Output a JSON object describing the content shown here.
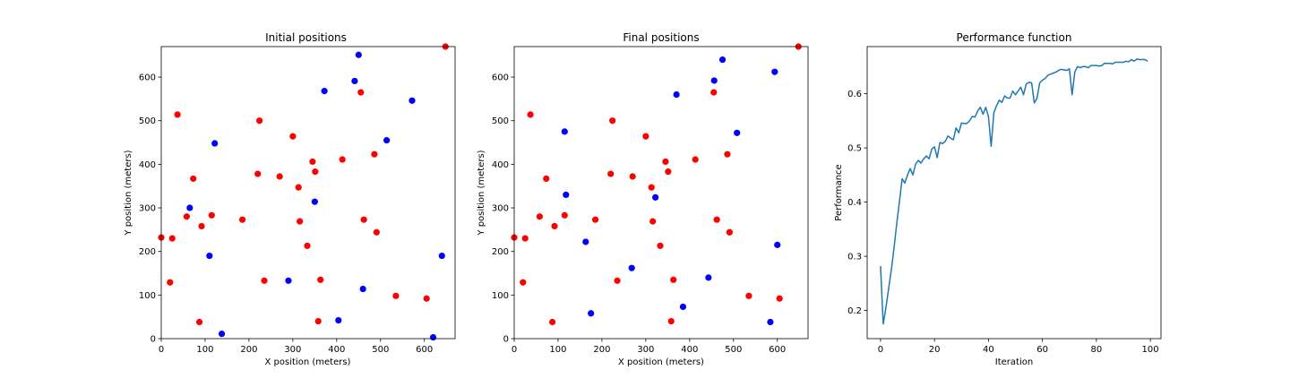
{
  "chart_data": [
    {
      "type": "scatter",
      "title": "Initial positions",
      "xlabel": "X position (meters)",
      "ylabel": "Y position (meters)",
      "xlim": [
        0,
        670
      ],
      "ylim": [
        0,
        670
      ],
      "xticks": [
        0,
        100,
        200,
        300,
        400,
        500,
        600
      ],
      "yticks": [
        0,
        100,
        200,
        300,
        400,
        500,
        600
      ],
      "grid": false,
      "series": [
        {
          "color": "#ff0000",
          "points": [
            [
              0,
              232
            ],
            [
              25,
              230
            ],
            [
              20,
              129
            ],
            [
              37,
              514
            ],
            [
              58,
              280
            ],
            [
              73,
              367
            ],
            [
              92,
              258
            ],
            [
              87,
              38
            ],
            [
              115,
              283
            ],
            [
              185,
              273
            ],
            [
              220,
              378
            ],
            [
              224,
              500
            ],
            [
              235,
              133
            ],
            [
              270,
              372
            ],
            [
              300,
              464
            ],
            [
              313,
              347
            ],
            [
              316,
              269
            ],
            [
              333,
              213
            ],
            [
              345,
              406
            ],
            [
              351,
              383
            ],
            [
              363,
              135
            ],
            [
              358,
              40
            ],
            [
              413,
              411
            ],
            [
              455,
              565
            ],
            [
              462,
              273
            ],
            [
              486,
              423
            ],
            [
              491,
              244
            ],
            [
              535,
              98
            ],
            [
              605,
              92
            ],
            [
              648,
              670
            ]
          ]
        },
        {
          "color": "#0000ff",
          "points": [
            [
              65,
              300
            ],
            [
              110,
              190
            ],
            [
              122,
              448
            ],
            [
              138,
              11
            ],
            [
              290,
              133
            ],
            [
              350,
              314
            ],
            [
              372,
              568
            ],
            [
              404,
              42
            ],
            [
              441,
              591
            ],
            [
              450,
              651
            ],
            [
              460,
              114
            ],
            [
              514,
              455
            ],
            [
              572,
              546
            ],
            [
              620,
              3
            ],
            [
              640,
              190
            ]
          ]
        }
      ]
    },
    {
      "type": "scatter",
      "title": "Final positions",
      "xlabel": "X position (meters)",
      "ylabel": "Y position (meters)",
      "xlim": [
        0,
        670
      ],
      "ylim": [
        0,
        670
      ],
      "xticks": [
        0,
        100,
        200,
        300,
        400,
        500,
        600
      ],
      "yticks": [
        0,
        100,
        200,
        300,
        400,
        500,
        600
      ],
      "grid": false,
      "series": [
        {
          "color": "#ff0000",
          "points": [
            [
              0,
              232
            ],
            [
              25,
              230
            ],
            [
              20,
              129
            ],
            [
              37,
              514
            ],
            [
              58,
              280
            ],
            [
              73,
              367
            ],
            [
              92,
              258
            ],
            [
              87,
              38
            ],
            [
              115,
              283
            ],
            [
              185,
              273
            ],
            [
              220,
              378
            ],
            [
              224,
              500
            ],
            [
              235,
              133
            ],
            [
              270,
              372
            ],
            [
              300,
              464
            ],
            [
              313,
              347
            ],
            [
              316,
              269
            ],
            [
              333,
              213
            ],
            [
              345,
              406
            ],
            [
              351,
              383
            ],
            [
              363,
              135
            ],
            [
              358,
              40
            ],
            [
              413,
              411
            ],
            [
              455,
              565
            ],
            [
              462,
              273
            ],
            [
              486,
              423
            ],
            [
              491,
              244
            ],
            [
              535,
              98
            ],
            [
              605,
              92
            ],
            [
              648,
              670
            ]
          ]
        },
        {
          "color": "#0000ff",
          "points": [
            [
              115,
              475
            ],
            [
              118,
              330
            ],
            [
              163,
              222
            ],
            [
              175,
              58
            ],
            [
              268,
              162
            ],
            [
              322,
              324
            ],
            [
              370,
              560
            ],
            [
              385,
              73
            ],
            [
              443,
              140
            ],
            [
              456,
              592
            ],
            [
              475,
              640
            ],
            [
              508,
              472
            ],
            [
              584,
              38
            ],
            [
              594,
              612
            ],
            [
              600,
              215
            ]
          ]
        }
      ]
    },
    {
      "type": "line",
      "title": "Performance function",
      "xlabel": "Iteration",
      "ylabel": "Performance",
      "xlim": [
        -4.95,
        103.95
      ],
      "ylim": [
        0.148,
        0.687
      ],
      "xticks": [
        0,
        20,
        40,
        60,
        80,
        100
      ],
      "yticks": [
        0.2,
        0.3,
        0.4,
        0.5,
        0.6
      ],
      "grid": false,
      "series": [
        {
          "color": "#1f77b4",
          "x": [
            0,
            1,
            2,
            3,
            4,
            5,
            6,
            7,
            8,
            9,
            10,
            11,
            12,
            13,
            14,
            15,
            16,
            17,
            18,
            19,
            20,
            21,
            22,
            23,
            24,
            25,
            26,
            27,
            28,
            29,
            30,
            31,
            32,
            33,
            34,
            35,
            36,
            37,
            38,
            39,
            40,
            41,
            42,
            43,
            44,
            45,
            46,
            47,
            48,
            49,
            50,
            51,
            52,
            53,
            54,
            55,
            56,
            57,
            58,
            59,
            60,
            61,
            62,
            63,
            64,
            65,
            66,
            67,
            68,
            69,
            70,
            71,
            72,
            73,
            74,
            75,
            76,
            77,
            78,
            79,
            80,
            81,
            82,
            83,
            84,
            85,
            86,
            87,
            88,
            89,
            90,
            91,
            92,
            93,
            94,
            95,
            96,
            97,
            98,
            99
          ],
          "y": [
            0.282,
            0.175,
            0.205,
            0.24,
            0.275,
            0.315,
            0.36,
            0.4,
            0.443,
            0.435,
            0.45,
            0.462,
            0.45,
            0.47,
            0.477,
            0.472,
            0.48,
            0.485,
            0.48,
            0.498,
            0.502,
            0.482,
            0.51,
            0.508,
            0.512,
            0.522,
            0.518,
            0.515,
            0.537,
            0.528,
            0.546,
            0.545,
            0.545,
            0.55,
            0.558,
            0.557,
            0.568,
            0.575,
            0.562,
            0.575,
            0.558,
            0.503,
            0.565,
            0.578,
            0.588,
            0.584,
            0.596,
            0.592,
            0.592,
            0.605,
            0.598,
            0.605,
            0.612,
            0.598,
            0.618,
            0.621,
            0.62,
            0.583,
            0.592,
            0.62,
            0.625,
            0.628,
            0.634,
            0.636,
            0.638,
            0.64,
            0.643,
            0.645,
            0.644,
            0.643,
            0.646,
            0.598,
            0.64,
            0.65,
            0.648,
            0.65,
            0.65,
            0.648,
            0.652,
            0.652,
            0.652,
            0.651,
            0.652,
            0.656,
            0.656,
            0.656,
            0.655,
            0.658,
            0.658,
            0.658,
            0.658,
            0.66,
            0.659,
            0.663,
            0.66,
            0.664,
            0.663,
            0.663,
            0.663,
            0.66
          ]
        }
      ]
    }
  ]
}
